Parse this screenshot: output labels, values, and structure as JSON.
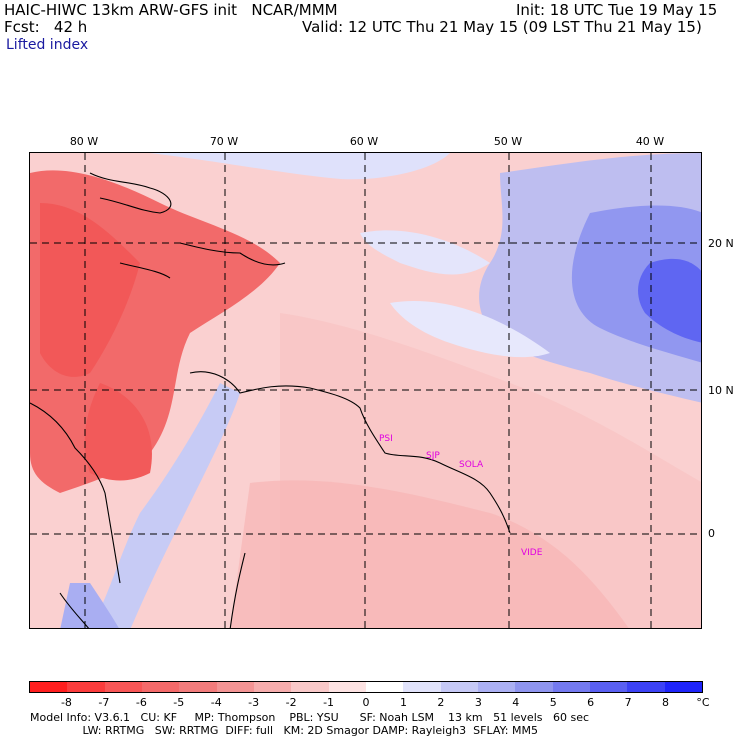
{
  "header": {
    "line1_left": "HAIC-HIWC 13km ARW-GFS init   NCAR/MMM",
    "line1_right": "Init: 18 UTC Tue 19 May 15",
    "fcst_label": "Fcst:   42 h",
    "valid": "Valid: 12 UTC Thu 21 May 15 (09 LST Thu 21 May 15)",
    "field": "Lifted index"
  },
  "axes": {
    "lon_labels": [
      "80 W",
      "70 W",
      "60 W",
      "50 W",
      "40 W"
    ],
    "lat_labels": [
      "20 N",
      "10 N",
      "0"
    ]
  },
  "cities": [
    "PSI",
    "SJP",
    "SOLA",
    "VIDE"
  ],
  "colorbar": {
    "ticks": [
      "-8",
      "-7",
      "-6",
      "-5",
      "-4",
      "-3",
      "-2",
      "-1",
      "0",
      "1",
      "2",
      "3",
      "4",
      "5",
      "6",
      "7",
      "8"
    ],
    "unit": "°C",
    "colors": [
      "#ff1e1e",
      "#fb3c3c",
      "#f85656",
      "#f46a6a",
      "#f27c7c",
      "#f39494",
      "#f6adad",
      "#f9c9c9",
      "#fde3e3",
      "#ffffff",
      "#e1e3fb",
      "#c6c9f6",
      "#abb0f3",
      "#8f95ef",
      "#747af0",
      "#5a60f2",
      "#3c42f5",
      "#1e24fa"
    ]
  },
  "footer": {
    "line1": "Model Info: V3.6.1   CU: KF     MP: Thompson    PBL: YSU      SF: Noah LSM    13 km   51 levels   60 sec",
    "line2": "               LW: RRTMG   SW: RRTMG  DIFF: full   KM: 2D Smagor DAMP: Rayleigh3  SFLAY: MM5"
  }
}
